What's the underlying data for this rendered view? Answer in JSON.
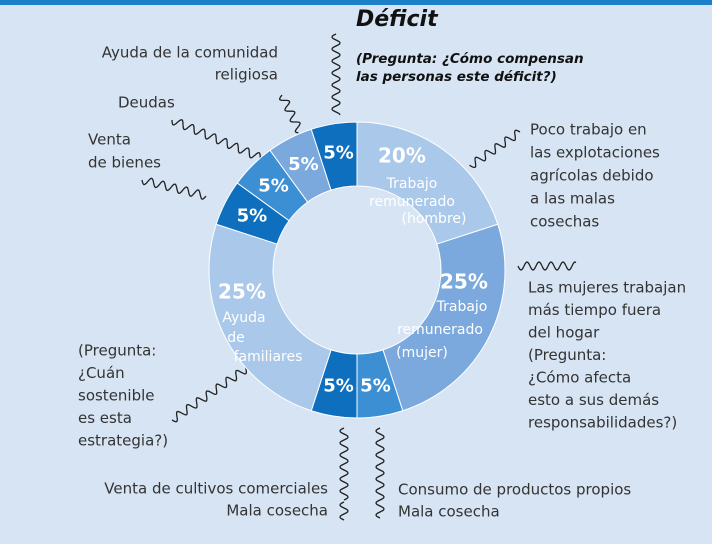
{
  "chart_data": {
    "type": "pie",
    "donut": true,
    "title": "Déficit",
    "subtitle": [
      "(Pregunta: ¿Cómo compensan",
      "las personas este déficit?)"
    ],
    "categories": [
      [
        "Trabajo",
        "remunerado",
        "(hombre)"
      ],
      [
        "Trabajo",
        "remunerado",
        "(mujer)"
      ],
      null,
      null,
      [
        "Ayuda",
        "de",
        "familiares"
      ],
      null,
      null,
      null,
      null
    ],
    "values": [
      20,
      25,
      5,
      5,
      25,
      5,
      5,
      5,
      5
    ],
    "value_labels": [
      "20%",
      "25%",
      "5%",
      "5%",
      "25%",
      "5%",
      "5%",
      "5%",
      "5%"
    ],
    "colors": [
      "#a9c8ea",
      "#7ba9dd",
      "#3d8fd4",
      "#0e6fbf",
      "#a9c8ea",
      "#0e6fbf",
      "#3d8fd4",
      "#7ba9dd",
      "#0e6fbf"
    ],
    "annotations": [
      {
        "lines": [
          "Poco trabajo en",
          "las explotaciones",
          "agrícolas debido",
          "a las malas",
          "cosechas"
        ]
      },
      {
        "lines": [
          "Las mujeres trabajan",
          "más tiempo fuera",
          "del hogar",
          "(Pregunta:",
          "¿Cómo afecta",
          "esto a sus demás",
          "responsabilidades?)"
        ]
      },
      {
        "lines": [
          "Consumo de productos propios",
          "Mala cosecha"
        ]
      },
      {
        "lines": [
          "Venta de cultivos comerciales",
          "Mala cosecha"
        ]
      },
      {
        "lines": [
          "(Pregunta:",
          "¿Cuán",
          "sostenible",
          "es esta",
          "estrategia?)"
        ]
      },
      {
        "lines": [
          "Venta",
          "de bienes"
        ]
      },
      {
        "lines": [
          "Deudas"
        ]
      },
      {
        "lines": [
          "Ayuda de la comunidad",
          "religiosa"
        ]
      }
    ]
  }
}
